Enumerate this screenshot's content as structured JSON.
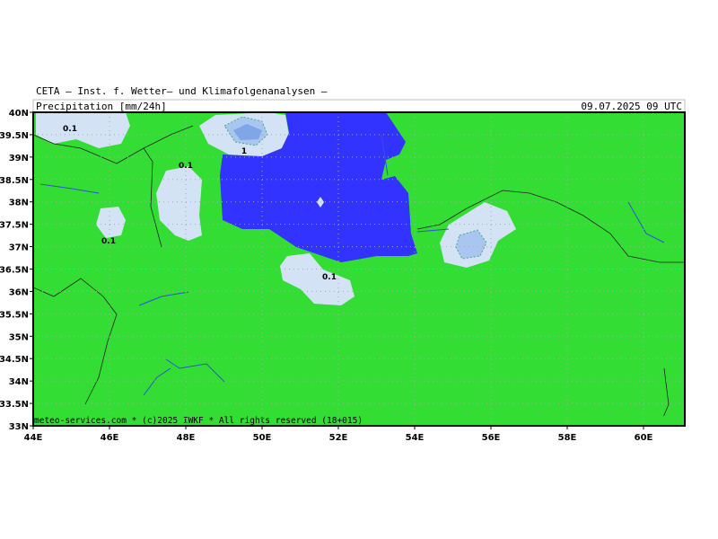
{
  "header": {
    "title": "CETA — Inst. f. Wetter— und Klimafolgenanalysen —",
    "subtitle": "Precipitation [mm/24h]",
    "valid_time": "09.07.2025 09 UTC"
  },
  "map": {
    "lat_labels": [
      "40N",
      "39.5N",
      "39N",
      "38.5N",
      "38N",
      "37.5N",
      "37N",
      "36.5N",
      "36N",
      "35.5N",
      "35N",
      "34.5N",
      "34N",
      "33.5N",
      "33N"
    ],
    "lon_labels": [
      "44E",
      "46E",
      "48E",
      "50E",
      "52E",
      "54E",
      "56E",
      "58E",
      "60E"
    ],
    "contour_labels": [
      "0.1",
      "0.1",
      "1",
      "0.1",
      "0.1"
    ],
    "footer": "meteo-services.com * (c)2025 IWKF * All rights reserved (18+015)"
  }
}
